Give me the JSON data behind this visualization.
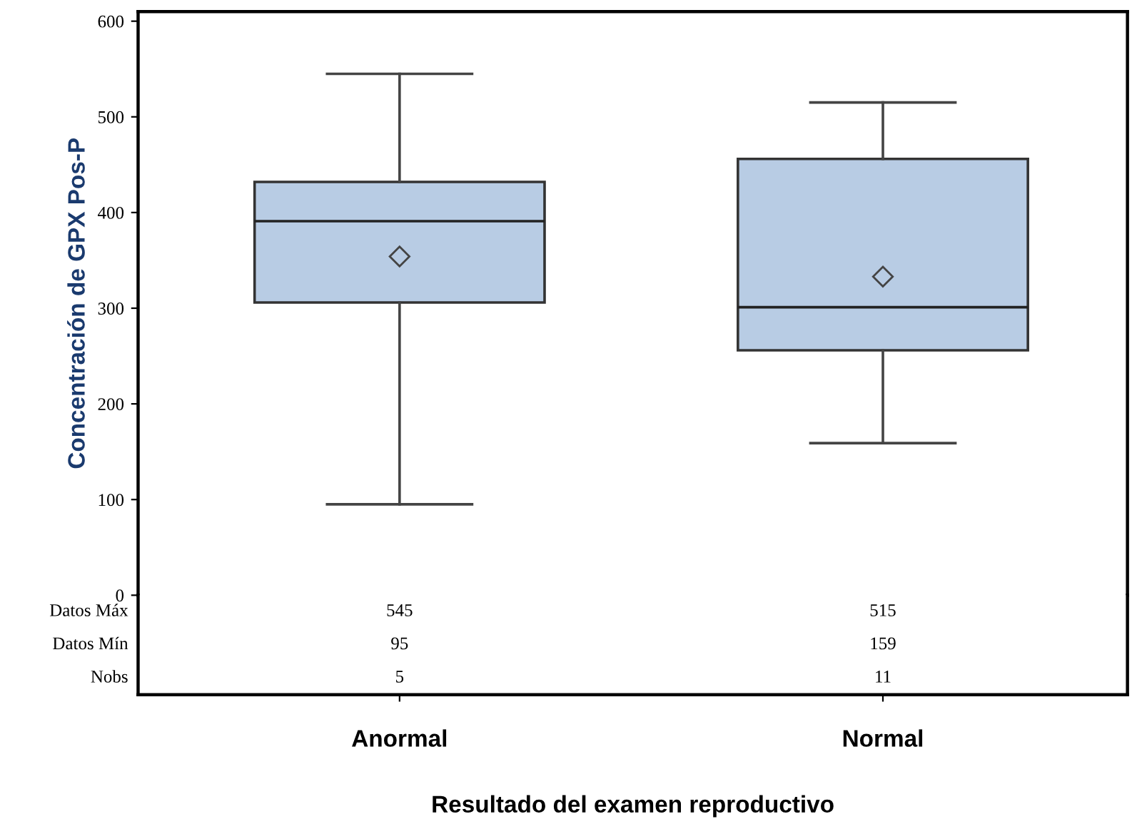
{
  "chart_data": {
    "type": "box",
    "ylabel": "Concentración de GPX Pos-P",
    "xlabel": "Resultado del examen reproductivo",
    "categories": [
      "Anormal",
      "Normal"
    ],
    "boxes": [
      {
        "low": 95,
        "q1": 306,
        "median": 391,
        "q3": 432,
        "high": 545,
        "mean": 354
      },
      {
        "low": 159,
        "q1": 256,
        "median": 301,
        "q3": 456,
        "high": 515,
        "mean": 333
      }
    ],
    "color": "#b8cce4",
    "marker": "diamond",
    "ylim": [
      0,
      610
    ],
    "yticks": [
      0,
      100,
      200,
      300,
      400,
      500,
      600
    ],
    "grid": false,
    "legend": false,
    "annotations": [
      "Datos Máx",
      "Datos Mín",
      "Nobs",
      "545",
      "515",
      "95",
      "159",
      "5",
      "11"
    ]
  }
}
